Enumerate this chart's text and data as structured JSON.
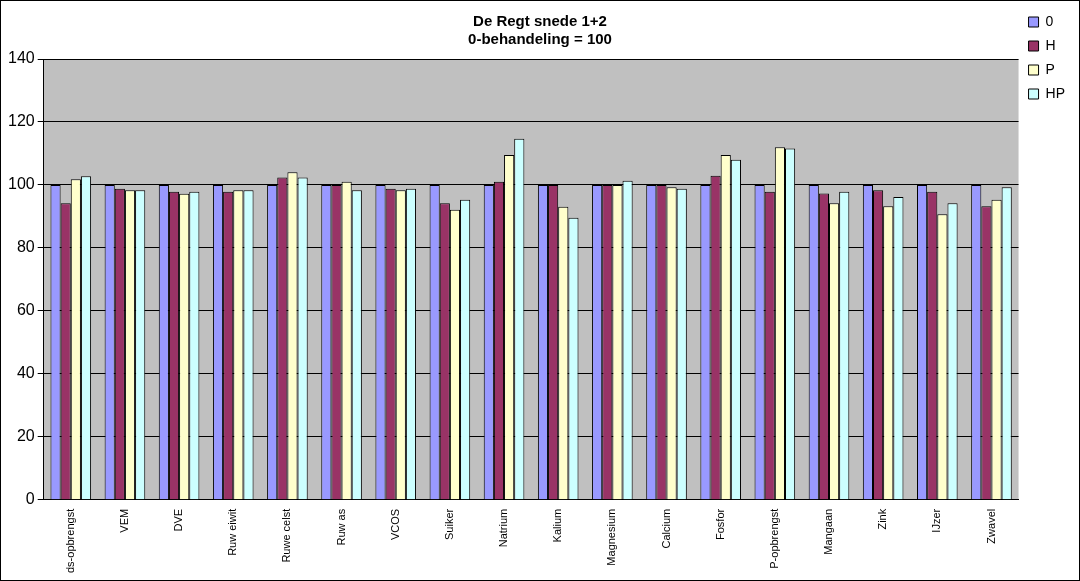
{
  "chart_data": {
    "type": "bar",
    "title": "De Regt snede 1+2",
    "subtitle": "0-behandeling = 100",
    "categories": [
      "ds-opbrengst",
      "VEM",
      "DVE",
      "Ruw eiwit",
      "Ruwe celst",
      "Ruw as",
      "VCOS",
      "Suiker",
      "Natrium",
      "Kalium",
      "Magnesium",
      "Calcium",
      "Fosfor",
      "P-opbrengst",
      "Mangaan",
      "Zink",
      "IJzer",
      "Zwavel"
    ],
    "series": [
      {
        "name": "0",
        "color": "#9999ff",
        "values": [
          100,
          100,
          100,
          100,
          100,
          100,
          100,
          100,
          100,
          100,
          100,
          100,
          100,
          100,
          100,
          100,
          100,
          100
        ]
      },
      {
        "name": "H",
        "color": "#993366",
        "values": [
          94.2,
          98.8,
          97.8,
          97.8,
          102.4,
          100,
          98.8,
          94.2,
          101,
          100,
          100,
          100,
          102.9,
          97.8,
          97.3,
          98.3,
          97.8,
          93.2
        ]
      },
      {
        "name": "P",
        "color": "#ffffcc",
        "values": [
          101.8,
          98.3,
          97.2,
          98.3,
          104,
          101,
          98.3,
          92.1,
          109.5,
          93.1,
          100,
          99.3,
          109.5,
          112,
          94.2,
          93.2,
          90.7,
          95.3
        ]
      },
      {
        "name": "HP",
        "color": "#ccffff",
        "values": [
          102.8,
          98.3,
          97.8,
          98.3,
          102.4,
          98.3,
          98.8,
          95.3,
          114.7,
          89.6,
          101.3,
          98.8,
          108,
          111.6,
          97.8,
          96.2,
          94.2,
          99.3
        ]
      }
    ],
    "ylim": [
      0,
      140
    ],
    "yticks": [
      0,
      20,
      40,
      60,
      80,
      100,
      120,
      140
    ],
    "grid": "y",
    "legend": "top right"
  }
}
